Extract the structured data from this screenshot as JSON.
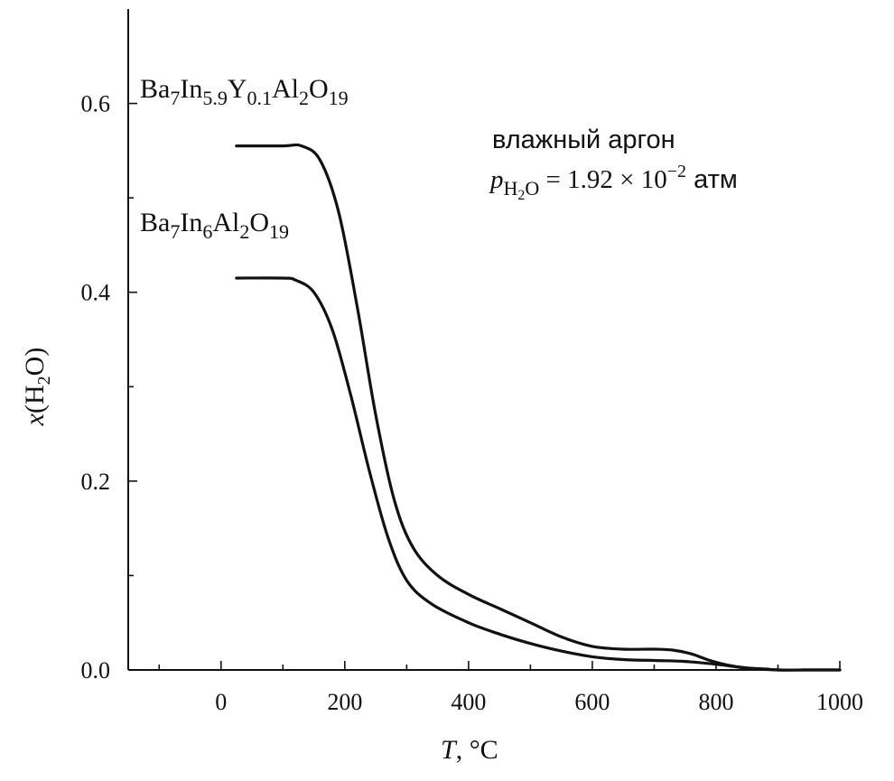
{
  "chart_data": {
    "type": "line",
    "xlabel_italic": "T",
    "xlabel_rest": ", °C",
    "ylabel_italic": "x",
    "ylabel_prefix": "(H",
    "ylabel_sub": "2",
    "ylabel_suffix": "O)",
    "xlim": [
      -150,
      1000
    ],
    "ylim": [
      0.0,
      0.7
    ],
    "x_ticks": [
      0,
      200,
      400,
      600,
      800,
      1000
    ],
    "x_tick_labels": [
      "0",
      "200",
      "400",
      "600",
      "800",
      "1000"
    ],
    "x_minor_ticks": [
      -100,
      100,
      300,
      500,
      700,
      900
    ],
    "y_ticks": [
      0.0,
      0.2,
      0.4,
      0.6
    ],
    "y_tick_labels": [
      "0.0",
      "0.2",
      "0.4",
      "0.6"
    ],
    "y_minor_ticks": [
      0.1,
      0.3,
      0.5
    ],
    "grid": false,
    "series": [
      {
        "name": "Ba7In5.9Y0.1Al2O19",
        "x": [
          25,
          100,
          130,
          160,
          190,
          220,
          250,
          280,
          310,
          350,
          400,
          450,
          500,
          550,
          600,
          650,
          700,
          730,
          760,
          790,
          820,
          850,
          880,
          900,
          950,
          1000
        ],
        "y": [
          0.555,
          0.555,
          0.555,
          0.54,
          0.485,
          0.385,
          0.27,
          0.18,
          0.13,
          0.1,
          0.08,
          0.065,
          0.05,
          0.035,
          0.025,
          0.022,
          0.022,
          0.021,
          0.017,
          0.01,
          0.005,
          0.002,
          0.001,
          0.0,
          0.0,
          0.0
        ]
      },
      {
        "name": "Ba7In6Al2O19",
        "x": [
          25,
          100,
          120,
          150,
          180,
          210,
          240,
          270,
          300,
          340,
          400,
          450,
          500,
          550,
          600,
          650,
          700,
          750,
          800,
          850,
          900,
          950,
          1000
        ],
        "y": [
          0.415,
          0.415,
          0.413,
          0.4,
          0.36,
          0.29,
          0.21,
          0.14,
          0.095,
          0.07,
          0.05,
          0.038,
          0.028,
          0.02,
          0.014,
          0.011,
          0.01,
          0.009,
          0.006,
          0.002,
          0.0,
          0.0,
          0.0
        ]
      }
    ],
    "series_labels": [
      {
        "parts": [
          [
            "Ba",
            ""
          ],
          [
            "7",
            "sub"
          ],
          [
            "In",
            ""
          ],
          [
            "5.9",
            "sub"
          ],
          [
            "Y",
            ""
          ],
          [
            "0.1",
            "sub"
          ],
          [
            "Al",
            ""
          ],
          [
            "2",
            "sub"
          ],
          [
            "O",
            ""
          ],
          [
            "19",
            "sub"
          ]
        ]
      },
      {
        "parts": [
          [
            "Ba",
            ""
          ],
          [
            "7",
            "sub"
          ],
          [
            "In",
            ""
          ],
          [
            "6",
            "sub"
          ],
          [
            "Al",
            ""
          ],
          [
            "2",
            "sub"
          ],
          [
            "O",
            ""
          ],
          [
            "19",
            "sub"
          ]
        ]
      }
    ],
    "annotation": {
      "line1": "влажный аргон",
      "p_symbol": "p",
      "p_sub_main": "H",
      "p_sub_sub": "2",
      "p_sub_end": "O",
      "eq_text": " = 1.92 × 10",
      "exp": "−2",
      "unit": " атм"
    }
  }
}
